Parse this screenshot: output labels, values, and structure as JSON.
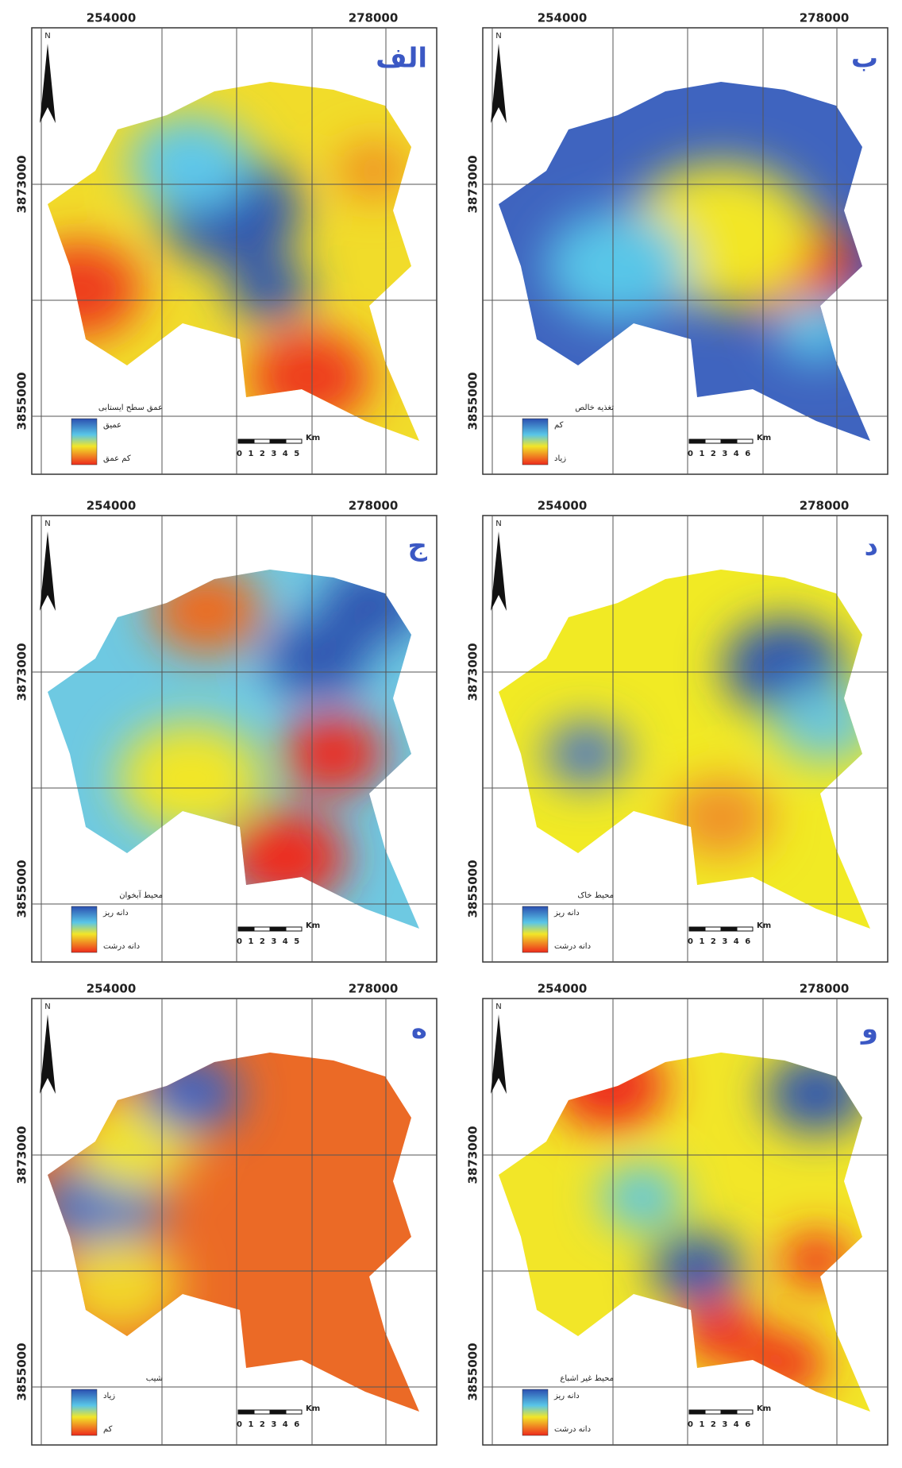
{
  "panels": [
    {
      "letter": "الف",
      "x_labels": [
        "254000",
        "278000"
      ],
      "y_labels": [
        "3873000",
        "3855000"
      ],
      "legend_title": "عمق سطح ایستابی",
      "legend_labels": [
        "عمیق",
        "کم عمق"
      ],
      "scale_unit": "Km",
      "scale_numbers": "0 1 2 3 4 5"
    },
    {
      "letter": "ب",
      "x_labels": [
        "254000",
        "278000"
      ],
      "y_labels": [
        "3873000",
        "3855000"
      ],
      "legend_title": "تغذیه خالص",
      "legend_labels": [
        "کم",
        "زیاد"
      ],
      "scale_unit": "Km",
      "scale_numbers": "0 1 2 3 4 6"
    },
    {
      "letter": "ج",
      "x_labels": [
        "254000",
        "278000"
      ],
      "y_labels": [
        "3873000",
        "3855000"
      ],
      "legend_title": "محیط آبخوان",
      "legend_labels": [
        "دانه ریز",
        "دانه درشت"
      ],
      "scale_unit": "Km",
      "scale_numbers": "0 1 2 3 4 5"
    },
    {
      "letter": "د",
      "x_labels": [
        "254000",
        "278000"
      ],
      "y_labels": [
        "3873000",
        "3855000"
      ],
      "legend_title": "محیط خاک",
      "legend_labels": [
        "دانه ریز",
        "دانه درشت"
      ],
      "scale_unit": "Km",
      "scale_numbers": "0 1 2 3 4 6"
    },
    {
      "letter": "ه",
      "x_labels": [
        "254000",
        "278000"
      ],
      "y_labels": [
        "3873000",
        "3855000"
      ],
      "legend_title": "شیب",
      "legend_labels": [
        "زیاد",
        "کم"
      ],
      "scale_unit": "Km",
      "scale_numbers": "0 1 2 3 4 6"
    },
    {
      "letter": "و",
      "x_labels": [
        "254000",
        "278000"
      ],
      "y_labels": [
        "3873000",
        "3855000"
      ],
      "legend_title": "محیط غیر اشباع",
      "legend_labels": [
        "دانه ریز",
        "دانه درشت"
      ],
      "scale_unit": "Km",
      "scale_numbers": "0 1 2 3 4 6"
    }
  ]
}
